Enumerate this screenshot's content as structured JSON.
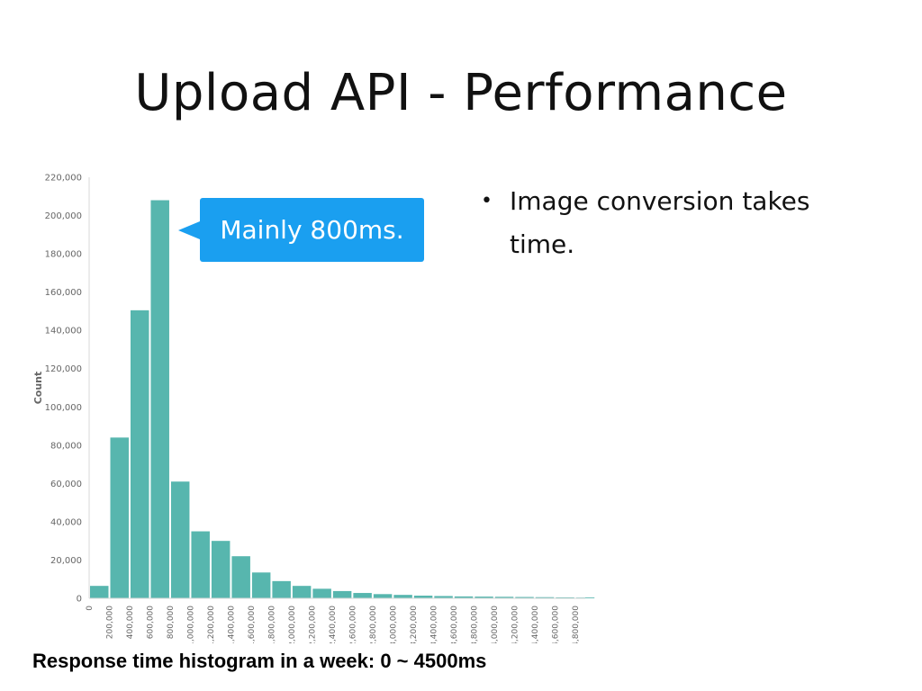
{
  "slide": {
    "title": "Upload API - Performance",
    "bullets": [
      "Image conversion takes time."
    ],
    "callout": "Mainly 800ms.",
    "caption": "Response time histogram in a week: 0 ~ 4500ms"
  },
  "colors": {
    "bar": "#57b6ae",
    "callout": "#1a9ff0"
  },
  "chart_data": {
    "type": "bar",
    "ylabel": "Count",
    "xlabel": "",
    "ylim": [
      0,
      220000
    ],
    "yticks": [
      0,
      20000,
      40000,
      60000,
      80000,
      100000,
      120000,
      140000,
      160000,
      180000,
      200000,
      220000
    ],
    "ytick_labels": [
      "0",
      "20,000",
      "40,000",
      "60,000",
      "80,000",
      "100,000",
      "120,000",
      "140,000",
      "160,000",
      "180,000",
      "200,000",
      "220,000"
    ],
    "xticks": [
      0,
      200000,
      400000,
      600000,
      800000,
      1000000,
      1200000,
      1400000,
      1600000,
      1800000,
      2000000,
      2200000,
      2400000,
      2600000,
      2800000,
      3000000,
      3200000,
      3400000,
      3600000,
      3800000,
      4000000,
      4200000,
      4400000,
      4600000,
      4800000
    ],
    "xtick_labels": [
      "0",
      "200,000",
      "400,000",
      "600,000",
      "800,000",
      "1,000,000",
      "1,200,000",
      "1,400,000",
      "1,600,000",
      "1,800,000",
      "2,000,000",
      "2,200,000",
      "2,400,000",
      "2,600,000",
      "2,800,000",
      "3,000,000",
      "3,200,000",
      "3,400,000",
      "3,600,000",
      "3,800,000",
      "4,000,000",
      "4,200,000",
      "4,400,000",
      "4,600,000",
      "4,800,000"
    ],
    "xlim": [
      0,
      4900000
    ],
    "bin_width": 200000,
    "bins": [
      100000,
      300000,
      500000,
      700000,
      900000,
      1100000,
      1300000,
      1500000,
      1700000,
      1900000,
      2100000,
      2300000,
      2500000,
      2700000,
      2900000,
      3100000,
      3300000,
      3500000,
      3700000,
      3900000,
      4100000,
      4300000,
      4500000,
      4700000,
      4900000
    ],
    "values": [
      6500,
      84000,
      150500,
      208000,
      61000,
      35000,
      30000,
      22000,
      13500,
      9000,
      6500,
      5000,
      3800,
      2800,
      2200,
      1800,
      1400,
      1200,
      1000,
      900,
      800,
      700,
      600,
      500,
      400
    ],
    "grid": false,
    "legend": "none"
  }
}
